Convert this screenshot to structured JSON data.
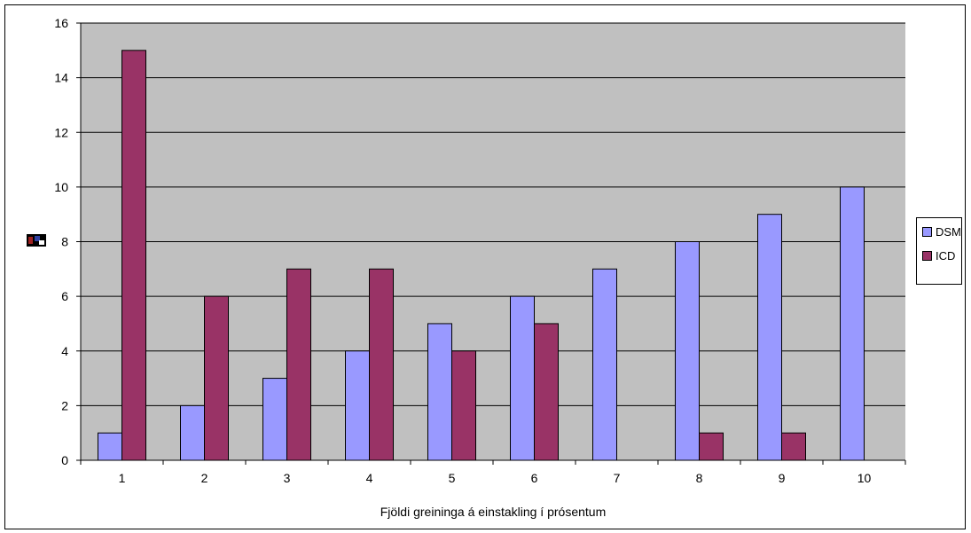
{
  "chart_data": {
    "type": "bar",
    "title": "",
    "xlabel": "Fjöldi greininga á einstakling í prósentum",
    "ylabel": "",
    "categories": [
      "1",
      "2",
      "3",
      "4",
      "5",
      "6",
      "7",
      "8",
      "9",
      "10"
    ],
    "series": [
      {
        "name": "DSM",
        "color": "#9999ff",
        "values": [
          1,
          2,
          3,
          4,
          5,
          6,
          7,
          8,
          9,
          10
        ]
      },
      {
        "name": "ICD",
        "color": "#993366",
        "values": [
          15,
          6,
          7,
          7,
          4,
          5,
          0,
          1,
          1,
          0
        ]
      }
    ],
    "ylim": [
      0,
      16
    ],
    "yticks": [
      0,
      2,
      4,
      6,
      8,
      10,
      12,
      14,
      16
    ],
    "grid": true,
    "plot_background": "#c0c0c0",
    "legend_position": "right"
  }
}
